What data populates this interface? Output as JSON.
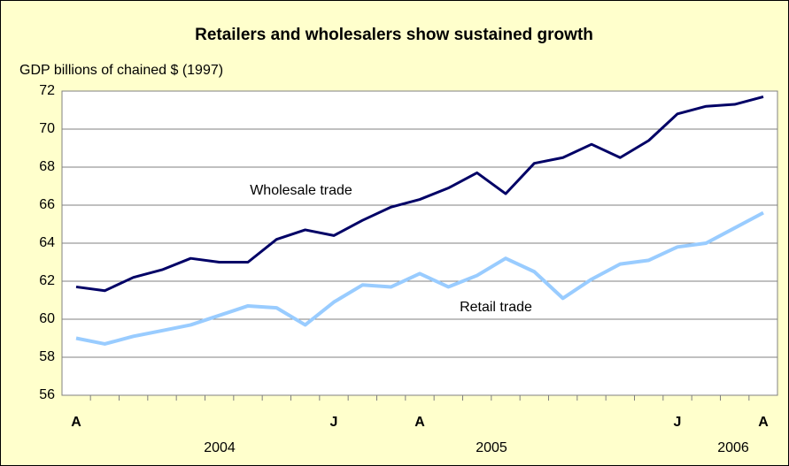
{
  "chart_data": {
    "type": "line",
    "title": "Retailers and wholesalers show sustained growth",
    "y_label": "GDP billions of chained $ (1997)",
    "categories": [
      "A",
      null,
      null,
      null,
      null,
      null,
      null,
      null,
      null,
      "J",
      null,
      null,
      "A",
      null,
      null,
      null,
      null,
      null,
      null,
      null,
      null,
      "J",
      null,
      null,
      "A"
    ],
    "year_labels": [
      "2004",
      "2005",
      "2006"
    ],
    "series": [
      {
        "name": "Wholesale trade",
        "color": "#000066",
        "values": [
          61.7,
          61.5,
          62.2,
          62.6,
          63.2,
          63.0,
          63.0,
          64.2,
          64.7,
          64.4,
          65.2,
          65.9,
          66.3,
          66.9,
          67.7,
          66.6,
          68.2,
          68.5,
          69.2,
          68.5,
          69.4,
          70.8,
          71.2,
          71.3,
          71.7
        ]
      },
      {
        "name": "Retail trade",
        "color": "#99ccff",
        "values": [
          59.0,
          58.7,
          59.1,
          59.4,
          59.7,
          60.2,
          60.7,
          60.6,
          59.7,
          60.9,
          61.8,
          61.7,
          62.4,
          61.7,
          62.3,
          63.2,
          62.5,
          61.1,
          62.1,
          62.9,
          63.1,
          63.8,
          64.0,
          64.8,
          65.6
        ]
      }
    ],
    "ylim": [
      56,
      72
    ],
    "yticks": [
      56,
      58,
      60,
      62,
      64,
      66,
      68,
      70,
      72
    ],
    "grid": true
  }
}
